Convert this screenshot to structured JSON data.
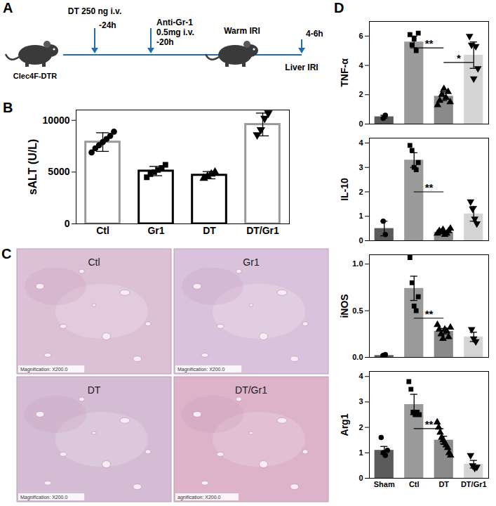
{
  "schematic": {
    "panel_label": "A",
    "strain": "Clec4F-DTR",
    "steps": [
      {
        "lines": [
          "DT 250 ng i.v.",
          "-24h"
        ]
      },
      {
        "lines": [
          "Anti-Gr-1",
          "0.5mg i.v.",
          "-20h"
        ]
      },
      {
        "lines": [
          "Warm IRI"
        ]
      },
      {
        "lines": [
          "4-6h",
          "Liver IRI"
        ]
      }
    ]
  },
  "chart_data": [
    {
      "type": "bar",
      "panel_label": "B",
      "ylabel": "sALT (U/L)",
      "categories": [
        "Ctl",
        "Gr1",
        "DT",
        "DT/Gr1"
      ],
      "values": [
        7900,
        5100,
        4700,
        9600
      ],
      "errors": [
        900,
        450,
        350,
        1100
      ],
      "color": "#ffffff",
      "colors": [
        "#999999",
        "#000000",
        "#000000",
        "#999999"
      ],
      "points": [
        {
          "marker": "circle",
          "values": [
            6900,
            7300,
            7600,
            7900,
            8200,
            8500,
            8900
          ]
        },
        {
          "marker": "square",
          "values": [
            4500,
            4800,
            5000,
            5200,
            5400,
            5700
          ]
        },
        {
          "marker": "triangle",
          "values": [
            4400,
            4600,
            4800,
            5000
          ]
        },
        {
          "marker": "triangle-down",
          "values": [
            8600,
            9100,
            10200,
            10700
          ]
        }
      ],
      "ylim": [
        0,
        11000
      ],
      "yticks": [
        0,
        5000,
        10000
      ]
    },
    {
      "type": "bar",
      "panel_label": "D",
      "ylabel": "TNF-α",
      "categories": [
        "Sham",
        "Ctl",
        "DT",
        "DT/Gr1"
      ],
      "values": [
        0.5,
        5.6,
        1.9,
        4.7
      ],
      "errors": [
        0.1,
        0.4,
        0.3,
        0.9
      ],
      "colors": [
        "#5a5a5a",
        "#9a9a9a",
        "#8a8a8a",
        "#d4d4d4"
      ],
      "points": [
        {
          "marker": "circle",
          "values": [
            0.4,
            0.6
          ]
        },
        {
          "marker": "square",
          "values": [
            6.1,
            5.4,
            5.8,
            5.0,
            6.2
          ]
        },
        {
          "marker": "triangle",
          "values": [
            1.3,
            1.6,
            2.0,
            2.4,
            1.8,
            2.2,
            1.5
          ]
        },
        {
          "marker": "triangle-down",
          "values": [
            6.0,
            5.4,
            3.1,
            5.3,
            3.8
          ]
        }
      ],
      "annotations": [
        {
          "text": "**",
          "from": "Ctl",
          "to": "DT",
          "y": 5.2
        },
        {
          "text": "*",
          "from": "DT",
          "to": "DT/Gr1",
          "y": 4.2
        }
      ],
      "ylim": [
        0,
        7
      ],
      "yticks": [
        0,
        2,
        4,
        6
      ],
      "tick_labels": "y"
    },
    {
      "type": "bar",
      "ylabel": "IL-10",
      "categories": [
        "Sham",
        "Ctl",
        "DT",
        "DT/Gr1"
      ],
      "values": [
        0.5,
        3.3,
        0.35,
        1.1
      ],
      "errors": [
        0.3,
        0.3,
        0.05,
        0.3
      ],
      "colors": [
        "#5a5a5a",
        "#9a9a9a",
        "#8a8a8a",
        "#d4d4d4"
      ],
      "points": [
        {
          "marker": "circle",
          "values": [
            0.8,
            0.25
          ]
        },
        {
          "marker": "square",
          "values": [
            3.9,
            3.7,
            3.0,
            2.9,
            3.2
          ]
        },
        {
          "marker": "triangle",
          "values": [
            0.3,
            0.4,
            0.35,
            0.45,
            0.25,
            0.3,
            0.4,
            0.5
          ]
        },
        {
          "marker": "triangle-down",
          "values": [
            1.6,
            1.3,
            0.9,
            0.7
          ]
        }
      ],
      "annotations": [
        {
          "text": "**",
          "from": "Ctl",
          "to": "DT",
          "y": 2.0
        }
      ],
      "ylim": [
        0,
        4.2
      ],
      "yticks": [
        0,
        1,
        2,
        3,
        4
      ],
      "tick_labels": "y"
    },
    {
      "type": "bar",
      "ylabel": "iNOS",
      "categories": [
        "Sham",
        "Ctl",
        "DT",
        "DT/Gr1"
      ],
      "values": [
        0.02,
        0.74,
        0.28,
        0.22
      ],
      "errors": [
        0.01,
        0.13,
        0.03,
        0.05
      ],
      "colors": [
        "#5a5a5a",
        "#9a9a9a",
        "#8a8a8a",
        "#d4d4d4"
      ],
      "points": [
        {
          "marker": "circle",
          "values": [
            0.02,
            0.03
          ]
        },
        {
          "marker": "square",
          "values": [
            1.07,
            0.8,
            0.55,
            0.5,
            0.65
          ]
        },
        {
          "marker": "triangle",
          "values": [
            0.35,
            0.3,
            0.25,
            0.2,
            0.3,
            0.28,
            0.22,
            0.32
          ]
        },
        {
          "marker": "triangle-down",
          "values": [
            0.3,
            0.2,
            0.17
          ]
        }
      ],
      "annotations": [
        {
          "text": "**",
          "from": "Ctl",
          "to": "DT",
          "y": 0.42
        }
      ],
      "ylim": [
        0,
        1.1
      ],
      "yticks": [
        {
          "value": 0,
          "label": "0.0"
        },
        0.5,
        {
          "value": 1,
          "label": "1.0"
        }
      ],
      "tick_labels": "y"
    },
    {
      "type": "bar",
      "ylabel": "Arg1",
      "categories": [
        "Sham",
        "Ctl",
        "DT",
        "DT/Gr1"
      ],
      "values": [
        1.1,
        2.9,
        1.5,
        0.55
      ],
      "errors": [
        0.15,
        0.4,
        0.15,
        0.15
      ],
      "colors": [
        "#5a5a5a",
        "#9a9a9a",
        "#8a8a8a",
        "#d4d4d4"
      ],
      "points": [
        {
          "marker": "circle",
          "values": [
            1.6,
            1.0,
            0.9,
            1.1
          ]
        },
        {
          "marker": "square",
          "values": [
            3.8,
            3.5,
            2.6,
            2.5,
            2.6,
            2.5
          ]
        },
        {
          "marker": "triangle",
          "values": [
            2.2,
            2.0,
            1.8,
            1.6,
            1.5,
            1.4,
            1.3,
            1.2,
            1.0,
            0.9
          ]
        },
        {
          "marker": "triangle-down",
          "values": [
            0.9,
            0.5,
            0.4,
            0.45
          ]
        }
      ],
      "annotations": [
        {
          "text": "**",
          "from": "Ctl",
          "to": "DT",
          "y": 1.95
        }
      ],
      "ylim": [
        0,
        4.2
      ],
      "yticks": [
        0,
        1,
        2,
        3,
        4
      ]
    }
  ],
  "images": {
    "panel_label": "C",
    "panels": [
      {
        "label": "Ctl",
        "caption": "Magnification: X200.0",
        "color": "#dcc0d6"
      },
      {
        "label": "Gr1",
        "caption": "Magnification: X200.0",
        "color": "#d9c3dc"
      },
      {
        "label": "DT",
        "caption": "Magnification: X200.0",
        "color": "#d4bcd5"
      },
      {
        "label": "DT/Gr1",
        "caption": "agnification: X200.0",
        "color": "#dcb3c9"
      }
    ]
  }
}
